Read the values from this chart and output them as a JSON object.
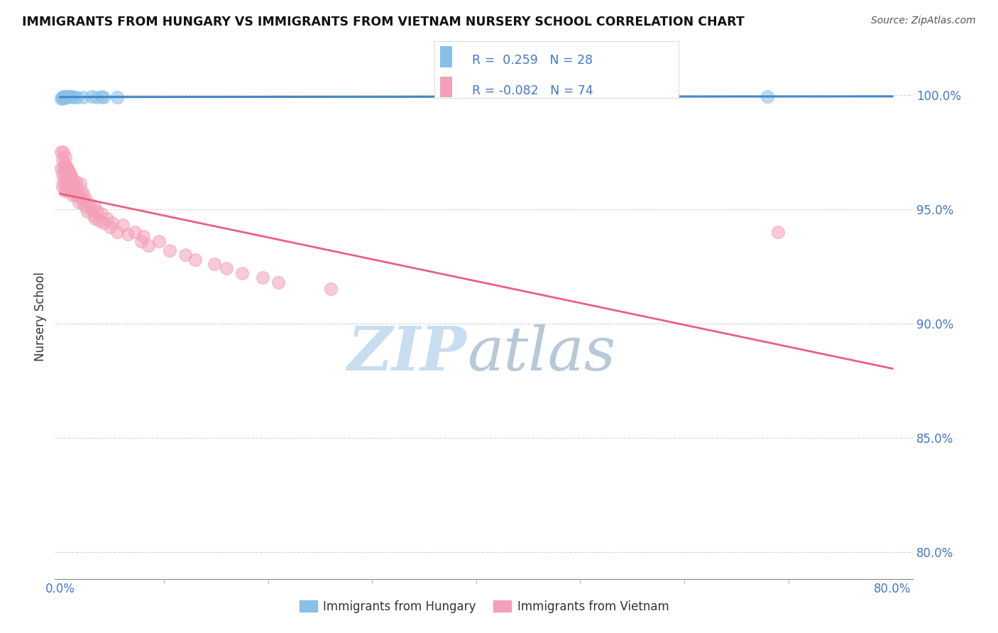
{
  "title": "IMMIGRANTS FROM HUNGARY VS IMMIGRANTS FROM VIETNAM NURSERY SCHOOL CORRELATION CHART",
  "source": "Source: ZipAtlas.com",
  "ylabel": "Nursery School",
  "y_ticks": [
    0.8,
    0.85,
    0.9,
    0.95,
    1.0
  ],
  "y_tick_labels": [
    "80.0%",
    "85.0%",
    "90.0%",
    "95.0%",
    "100.0%"
  ],
  "xlim": [
    -0.005,
    0.82
  ],
  "ylim": [
    0.788,
    1.018
  ],
  "legend_blue_label": "Immigrants from Hungary",
  "legend_pink_label": "Immigrants from Vietnam",
  "R_blue": 0.259,
  "N_blue": 28,
  "R_pink": -0.082,
  "N_pink": 74,
  "blue_color": "#88c0e8",
  "pink_color": "#f4a0b8",
  "blue_line_color": "#4488cc",
  "pink_line_color": "#e86080",
  "grid_color": "#bbbbbb",
  "title_color": "#111111",
  "axis_label_color": "#333333",
  "tick_label_color": "#4477cc",
  "watermark_zip_color": "#c8ddf0",
  "watermark_atlas_color": "#b8c8d8",
  "blue_scatter_x": [
    0.001,
    0.002,
    0.002,
    0.003,
    0.003,
    0.003,
    0.004,
    0.004,
    0.004,
    0.005,
    0.005,
    0.005,
    0.006,
    0.007,
    0.007,
    0.008,
    0.009,
    0.01,
    0.011,
    0.013,
    0.016,
    0.022,
    0.03,
    0.035,
    0.04,
    0.042,
    0.055,
    0.68
  ],
  "blue_scatter_y": [
    0.9985,
    0.999,
    0.9988,
    0.9992,
    0.999,
    0.9988,
    0.9992,
    0.999,
    0.9988,
    0.9993,
    0.9991,
    0.9989,
    0.9993,
    0.9993,
    0.9991,
    0.9993,
    0.9993,
    0.9992,
    0.9992,
    0.9991,
    0.999,
    0.9991,
    0.9992,
    0.9991,
    0.9992,
    0.9991,
    0.999,
    0.9993
  ],
  "pink_scatter_x": [
    0.001,
    0.001,
    0.002,
    0.002,
    0.002,
    0.003,
    0.003,
    0.003,
    0.004,
    0.004,
    0.004,
    0.005,
    0.005,
    0.005,
    0.006,
    0.006,
    0.007,
    0.007,
    0.007,
    0.008,
    0.008,
    0.009,
    0.009,
    0.01,
    0.01,
    0.011,
    0.011,
    0.012,
    0.012,
    0.013,
    0.014,
    0.015,
    0.015,
    0.016,
    0.017,
    0.018,
    0.019,
    0.02,
    0.021,
    0.022,
    0.023,
    0.024,
    0.025,
    0.026,
    0.028,
    0.03,
    0.032,
    0.033,
    0.034,
    0.036,
    0.038,
    0.04,
    0.042,
    0.045,
    0.048,
    0.05,
    0.055,
    0.06,
    0.065,
    0.072,
    0.078,
    0.08,
    0.085,
    0.095,
    0.105,
    0.12,
    0.13,
    0.148,
    0.16,
    0.175,
    0.195,
    0.21,
    0.26,
    0.69
  ],
  "pink_scatter_y": [
    0.975,
    0.968,
    0.972,
    0.965,
    0.96,
    0.975,
    0.968,
    0.962,
    0.97,
    0.965,
    0.958,
    0.973,
    0.967,
    0.961,
    0.969,
    0.963,
    0.968,
    0.963,
    0.958,
    0.967,
    0.961,
    0.966,
    0.96,
    0.965,
    0.959,
    0.964,
    0.958,
    0.962,
    0.956,
    0.961,
    0.958,
    0.962,
    0.956,
    0.959,
    0.956,
    0.953,
    0.961,
    0.955,
    0.958,
    0.953,
    0.956,
    0.951,
    0.954,
    0.949,
    0.952,
    0.95,
    0.947,
    0.951,
    0.946,
    0.949,
    0.945,
    0.948,
    0.944,
    0.946,
    0.942,
    0.944,
    0.94,
    0.943,
    0.939,
    0.94,
    0.936,
    0.938,
    0.934,
    0.936,
    0.932,
    0.93,
    0.928,
    0.926,
    0.924,
    0.922,
    0.92,
    0.918,
    0.915,
    0.94
  ]
}
